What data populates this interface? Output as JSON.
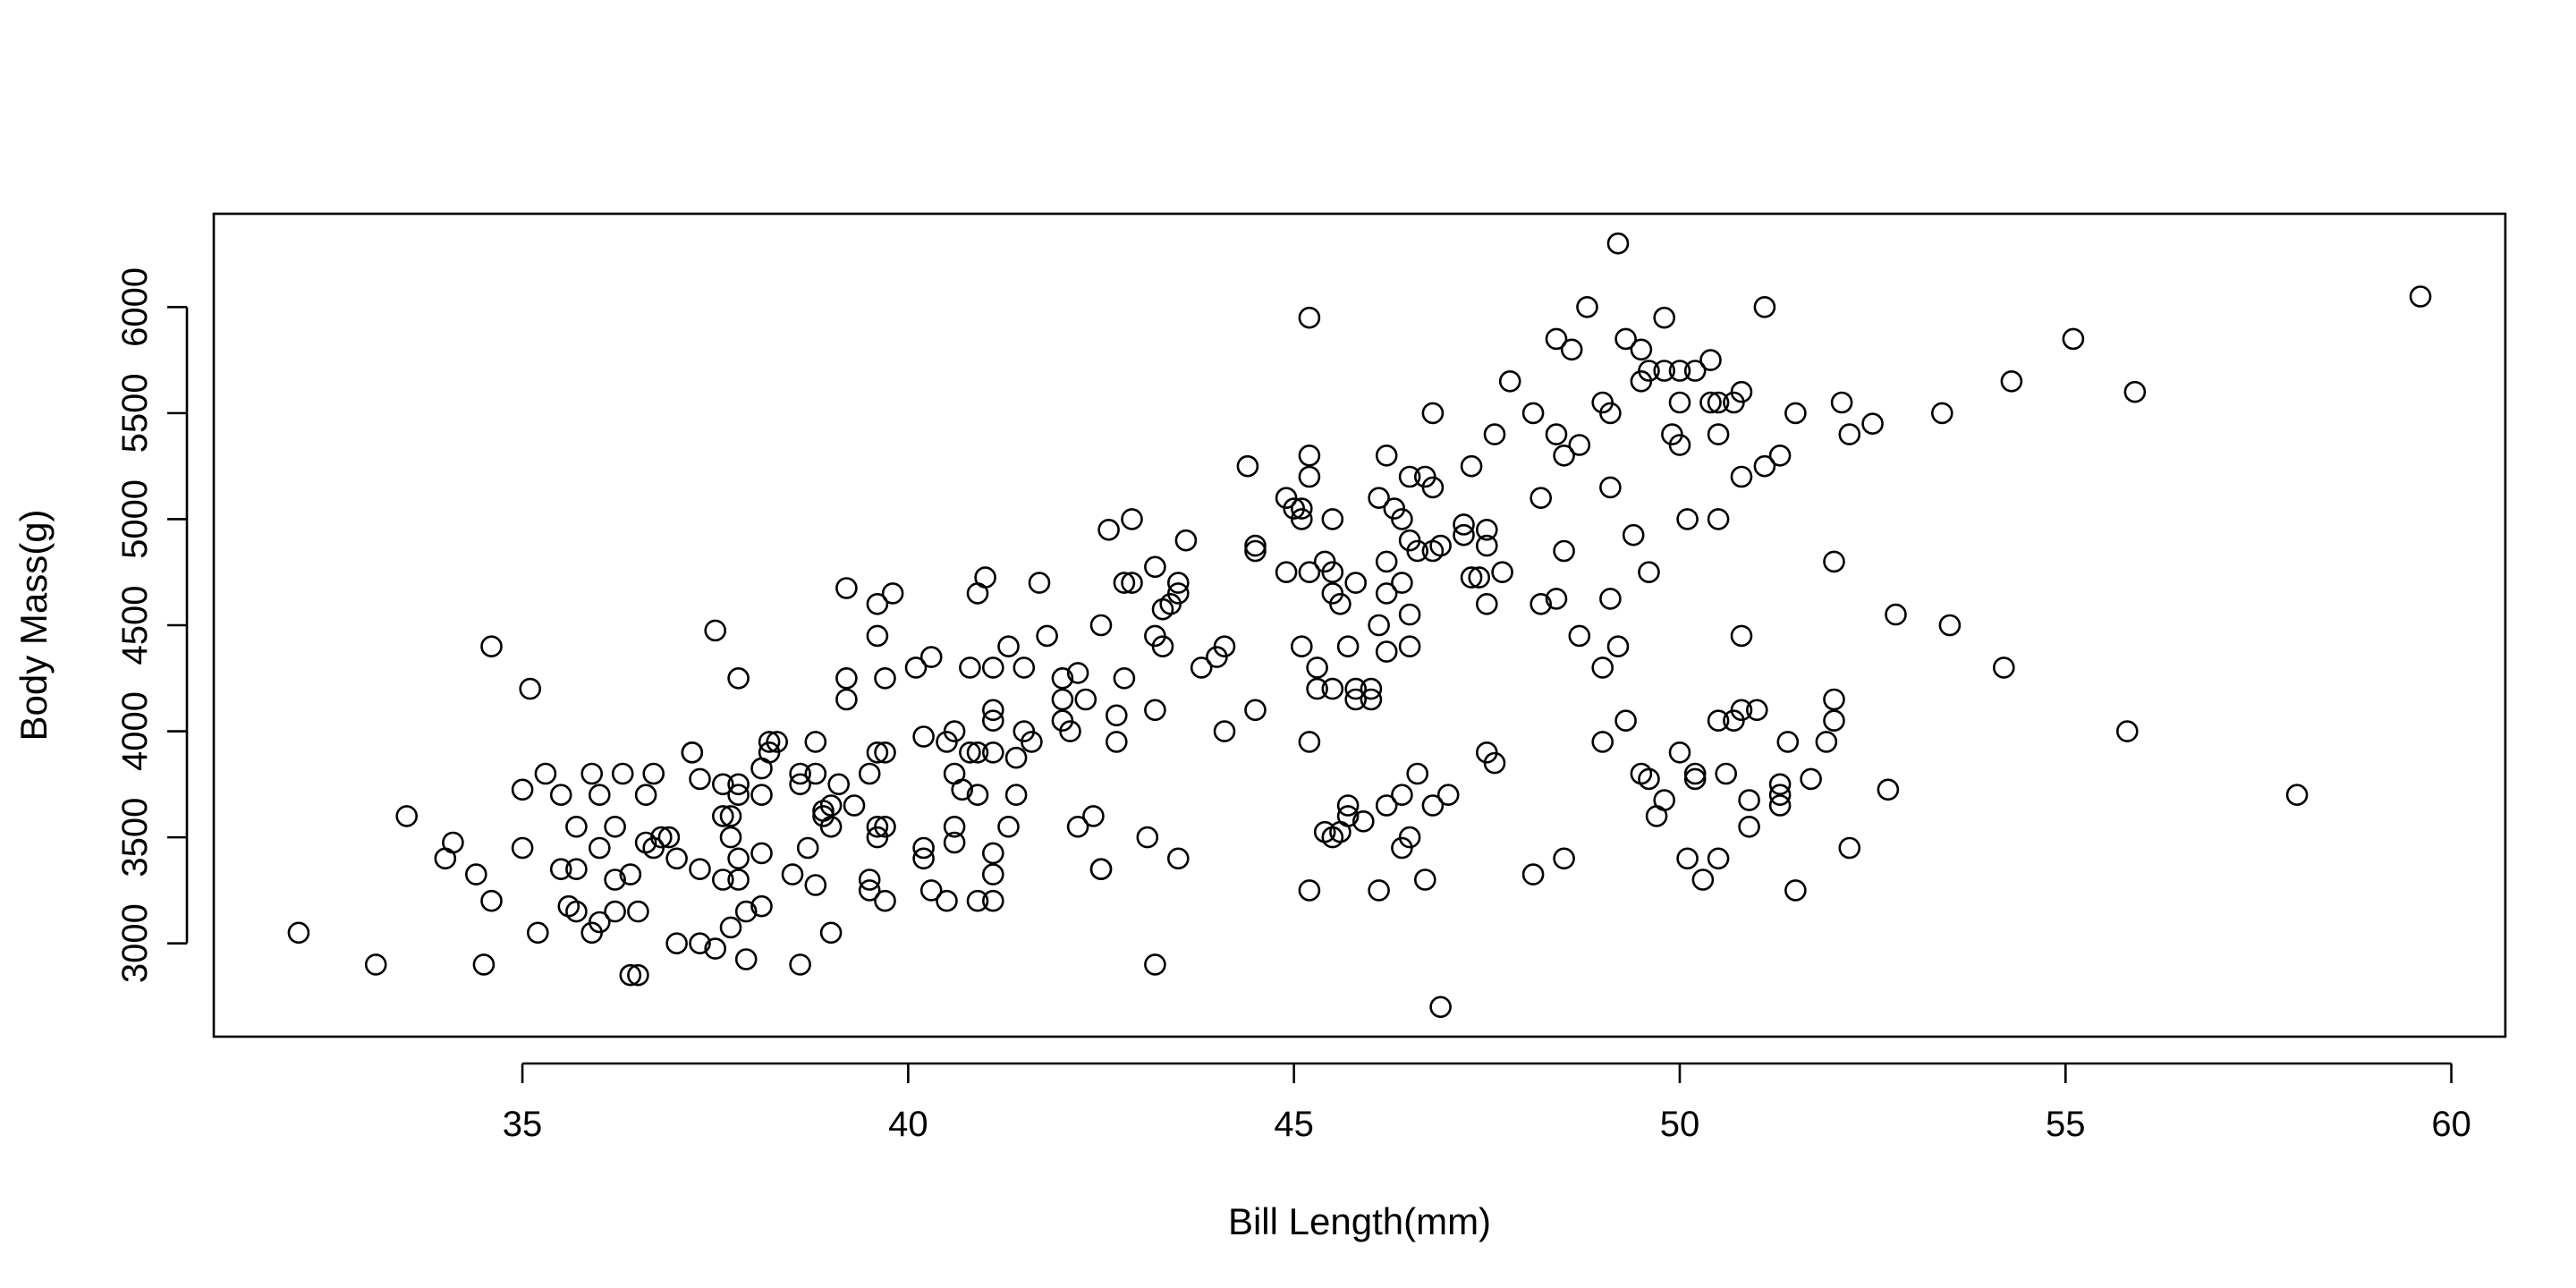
{
  "chart_data": {
    "type": "scatter",
    "title": "",
    "xlabel": "Bill Length(mm)",
    "ylabel": "Body Mass(g)",
    "xlim": [
      31,
      60.7
    ],
    "ylim": [
      2560,
      6440
    ],
    "xticks": [
      35,
      40,
      45,
      50,
      55,
      60
    ],
    "yticks": [
      3000,
      3500,
      4000,
      4500,
      5000,
      5500,
      6000
    ],
    "grid": false,
    "legend": "none",
    "marker": "open-circle",
    "color": "#000000",
    "points": [
      [
        32.1,
        3050
      ],
      [
        33.1,
        2900
      ],
      [
        33.5,
        3600
      ],
      [
        34.0,
        3400
      ],
      [
        34.1,
        3475
      ],
      [
        34.4,
        3325
      ],
      [
        34.5,
        2900
      ],
      [
        34.6,
        3200
      ],
      [
        34.6,
        4400
      ],
      [
        35.0,
        3450
      ],
      [
        35.0,
        3725
      ],
      [
        35.1,
        4200
      ],
      [
        35.2,
        3050
      ],
      [
        35.3,
        3800
      ],
      [
        35.5,
        3700
      ],
      [
        35.5,
        3350
      ],
      [
        35.6,
        3175
      ],
      [
        35.7,
        3150
      ],
      [
        35.7,
        3350
      ],
      [
        35.7,
        3550
      ],
      [
        35.9,
        3800
      ],
      [
        35.9,
        3050
      ],
      [
        36.0,
        3100
      ],
      [
        36.0,
        3450
      ],
      [
        36.0,
        3700
      ],
      [
        36.2,
        3300
      ],
      [
        36.2,
        3550
      ],
      [
        36.2,
        3150
      ],
      [
        36.3,
        3800
      ],
      [
        36.4,
        2850
      ],
      [
        36.4,
        3325
      ],
      [
        36.5,
        2850
      ],
      [
        36.5,
        3150
      ],
      [
        36.6,
        3475
      ],
      [
        36.6,
        3700
      ],
      [
        36.7,
        3450
      ],
      [
        36.7,
        3800
      ],
      [
        36.8,
        3500
      ],
      [
        36.9,
        3500
      ],
      [
        37.0,
        3400
      ],
      [
        37.0,
        3000
      ],
      [
        37.2,
        3900
      ],
      [
        37.2,
        3900
      ],
      [
        37.3,
        3775
      ],
      [
        37.3,
        3350
      ],
      [
        37.3,
        3000
      ],
      [
        37.5,
        4475
      ],
      [
        37.5,
        2975
      ],
      [
        37.6,
        3300
      ],
      [
        37.6,
        3600
      ],
      [
        37.6,
        3750
      ],
      [
        37.7,
        3600
      ],
      [
        37.7,
        3075
      ],
      [
        37.7,
        3500
      ],
      [
        37.8,
        3700
      ],
      [
        37.8,
        3750
      ],
      [
        37.8,
        3400
      ],
      [
        37.8,
        3300
      ],
      [
        37.8,
        4250
      ],
      [
        37.9,
        3150
      ],
      [
        37.9,
        2925
      ],
      [
        38.1,
        3425
      ],
      [
        38.1,
        3700
      ],
      [
        38.1,
        3825
      ],
      [
        38.1,
        3175
      ],
      [
        38.2,
        3950
      ],
      [
        38.2,
        3900
      ],
      [
        38.3,
        3950
      ],
      [
        38.6,
        3800
      ],
      [
        38.6,
        3750
      ],
      [
        38.6,
        2900
      ],
      [
        38.7,
        3450
      ],
      [
        38.5,
        3325
      ],
      [
        38.8,
        3950
      ],
      [
        38.8,
        3800
      ],
      [
        38.8,
        3275
      ],
      [
        38.9,
        3625
      ],
      [
        38.9,
        3600
      ],
      [
        39.0,
        3650
      ],
      [
        39.0,
        3550
      ],
      [
        39.0,
        3050
      ],
      [
        39.1,
        3750
      ],
      [
        39.2,
        4675
      ],
      [
        39.2,
        4250
      ],
      [
        39.2,
        4150
      ],
      [
        39.3,
        3650
      ],
      [
        39.5,
        3800
      ],
      [
        39.5,
        3300
      ],
      [
        39.5,
        3250
      ],
      [
        39.6,
        3500
      ],
      [
        39.6,
        3550
      ],
      [
        39.6,
        4450
      ],
      [
        39.6,
        4600
      ],
      [
        39.6,
        3900
      ],
      [
        39.7,
        3900
      ],
      [
        39.7,
        3200
      ],
      [
        39.7,
        3550
      ],
      [
        39.7,
        4250
      ],
      [
        39.8,
        4650
      ],
      [
        40.1,
        4300
      ],
      [
        40.2,
        3400
      ],
      [
        40.2,
        3450
      ],
      [
        40.2,
        3975
      ],
      [
        40.3,
        4350
      ],
      [
        40.3,
        3250
      ],
      [
        40.5,
        3950
      ],
      [
        40.5,
        3200
      ],
      [
        40.6,
        3800
      ],
      [
        40.6,
        3550
      ],
      [
        40.6,
        4000
      ],
      [
        40.6,
        3475
      ],
      [
        40.7,
        3725
      ],
      [
        40.8,
        4300
      ],
      [
        40.8,
        3900
      ],
      [
        40.9,
        3900
      ],
      [
        40.9,
        4650
      ],
      [
        40.9,
        3200
      ],
      [
        40.9,
        3700
      ],
      [
        41.0,
        4725
      ],
      [
        41.1,
        3425
      ],
      [
        41.1,
        3325
      ],
      [
        41.1,
        4050
      ],
      [
        41.1,
        4100
      ],
      [
        41.1,
        4300
      ],
      [
        41.1,
        3900
      ],
      [
        41.1,
        3200
      ],
      [
        41.3,
        3550
      ],
      [
        41.3,
        4400
      ],
      [
        41.4,
        3875
      ],
      [
        41.4,
        3700
      ],
      [
        41.5,
        4300
      ],
      [
        41.5,
        4000
      ],
      [
        41.6,
        3950
      ],
      [
        41.7,
        4700
      ],
      [
        41.8,
        4450
      ],
      [
        42.0,
        4150
      ],
      [
        42.0,
        4250
      ],
      [
        42.0,
        4050
      ],
      [
        42.1,
        4000
      ],
      [
        42.2,
        3550
      ],
      [
        42.2,
        4275
      ],
      [
        42.3,
        4150
      ],
      [
        42.4,
        3600
      ],
      [
        42.5,
        3350
      ],
      [
        42.5,
        4500
      ],
      [
        42.5,
        3350
      ],
      [
        42.6,
        4950
      ],
      [
        42.7,
        4075
      ],
      [
        42.7,
        3950
      ],
      [
        42.8,
        4700
      ],
      [
        42.8,
        4250
      ],
      [
        42.9,
        5000
      ],
      [
        42.9,
        4700
      ],
      [
        43.1,
        3500
      ],
      [
        43.2,
        4775
      ],
      [
        43.2,
        4100
      ],
      [
        43.2,
        4450
      ],
      [
        43.2,
        2900
      ],
      [
        43.3,
        4575
      ],
      [
        43.3,
        4400
      ],
      [
        43.4,
        4600
      ],
      [
        43.5,
        4650
      ],
      [
        43.5,
        4700
      ],
      [
        43.5,
        3400
      ],
      [
        43.6,
        4900
      ],
      [
        43.8,
        4300
      ],
      [
        44.0,
        4350
      ],
      [
        44.1,
        4400
      ],
      [
        44.1,
        4000
      ],
      [
        44.4,
        5250
      ],
      [
        44.5,
        4850
      ],
      [
        44.5,
        4875
      ],
      [
        44.5,
        4100
      ],
      [
        44.9,
        5100
      ],
      [
        44.9,
        4750
      ],
      [
        45.0,
        5050
      ],
      [
        45.1,
        5050
      ],
      [
        45.1,
        5000
      ],
      [
        45.1,
        4400
      ],
      [
        45.2,
        5950
      ],
      [
        45.2,
        5300
      ],
      [
        45.2,
        5200
      ],
      [
        45.2,
        4750
      ],
      [
        45.2,
        3950
      ],
      [
        45.2,
        3250
      ],
      [
        45.3,
        4300
      ],
      [
        45.3,
        4200
      ],
      [
        45.4,
        4800
      ],
      [
        45.4,
        3525
      ],
      [
        45.5,
        4750
      ],
      [
        45.5,
        4650
      ],
      [
        45.5,
        5000
      ],
      [
        45.5,
        4200
      ],
      [
        45.5,
        3500
      ],
      [
        45.6,
        4600
      ],
      [
        45.6,
        3525
      ],
      [
        45.7,
        4400
      ],
      [
        45.7,
        3650
      ],
      [
        45.7,
        3600
      ],
      [
        45.8,
        4200
      ],
      [
        45.8,
        4700
      ],
      [
        45.8,
        4150
      ],
      [
        45.9,
        3575
      ],
      [
        46.0,
        4200
      ],
      [
        46.0,
        4150
      ],
      [
        46.1,
        5100
      ],
      [
        46.1,
        4500
      ],
      [
        46.1,
        3250
      ],
      [
        46.2,
        5300
      ],
      [
        46.2,
        4650
      ],
      [
        46.2,
        4375
      ],
      [
        46.2,
        4800
      ],
      [
        46.2,
        3650
      ],
      [
        46.3,
        5050
      ],
      [
        46.4,
        5000
      ],
      [
        46.4,
        4700
      ],
      [
        46.4,
        3450
      ],
      [
        46.4,
        3700
      ],
      [
        46.5,
        5200
      ],
      [
        46.5,
        4550
      ],
      [
        46.5,
        4400
      ],
      [
        46.5,
        4900
      ],
      [
        46.5,
        3500
      ],
      [
        46.6,
        4850
      ],
      [
        46.6,
        3800
      ],
      [
        46.7,
        5200
      ],
      [
        46.7,
        3300
      ],
      [
        46.8,
        4850
      ],
      [
        46.8,
        5150
      ],
      [
        46.8,
        5500
      ],
      [
        46.8,
        3650
      ],
      [
        46.9,
        2700
      ],
      [
        46.9,
        4875
      ],
      [
        47.0,
        3700
      ],
      [
        47.2,
        4925
      ],
      [
        47.2,
        4975
      ],
      [
        47.3,
        5250
      ],
      [
        47.3,
        4725
      ],
      [
        47.4,
        4725
      ],
      [
        47.5,
        3900
      ],
      [
        47.5,
        4950
      ],
      [
        47.5,
        4875
      ],
      [
        47.5,
        4600
      ],
      [
        47.6,
        5400
      ],
      [
        47.6,
        3850
      ],
      [
        47.7,
        4750
      ],
      [
        47.8,
        5650
      ],
      [
        48.1,
        3325
      ],
      [
        48.1,
        5500
      ],
      [
        48.2,
        5100
      ],
      [
        48.2,
        4600
      ],
      [
        48.4,
        4625
      ],
      [
        48.4,
        5400
      ],
      [
        48.4,
        5850
      ],
      [
        48.5,
        5300
      ],
      [
        48.5,
        4850
      ],
      [
        48.5,
        3400
      ],
      [
        48.6,
        5800
      ],
      [
        48.7,
        5350
      ],
      [
        48.7,
        4450
      ],
      [
        48.8,
        6000
      ],
      [
        49.0,
        3950
      ],
      [
        49.0,
        5550
      ],
      [
        49.0,
        4300
      ],
      [
        49.1,
        4625
      ],
      [
        49.1,
        5500
      ],
      [
        49.1,
        5150
      ],
      [
        49.2,
        6300
      ],
      [
        49.2,
        4400
      ],
      [
        49.3,
        4050
      ],
      [
        49.3,
        5850
      ],
      [
        49.4,
        4925
      ],
      [
        49.5,
        5650
      ],
      [
        49.5,
        5800
      ],
      [
        49.5,
        3800
      ],
      [
        49.6,
        3775
      ],
      [
        49.6,
        5700
      ],
      [
        49.6,
        4750
      ],
      [
        49.7,
        3600
      ],
      [
        49.8,
        5700
      ],
      [
        49.8,
        5950
      ],
      [
        49.8,
        3675
      ],
      [
        49.9,
        5400
      ],
      [
        50.0,
        5550
      ],
      [
        50.0,
        5700
      ],
      [
        50.0,
        5350
      ],
      [
        50.0,
        3900
      ],
      [
        50.1,
        5000
      ],
      [
        50.1,
        3400
      ],
      [
        50.2,
        5700
      ],
      [
        50.2,
        3800
      ],
      [
        50.2,
        3775
      ],
      [
        50.3,
        3300
      ],
      [
        50.4,
        5550
      ],
      [
        50.4,
        5750
      ],
      [
        50.5,
        5550
      ],
      [
        50.5,
        5400
      ],
      [
        50.5,
        5000
      ],
      [
        50.5,
        3400
      ],
      [
        50.5,
        4050
      ],
      [
        50.6,
        3800
      ],
      [
        50.7,
        5550
      ],
      [
        50.7,
        4050
      ],
      [
        50.8,
        5600
      ],
      [
        50.8,
        5200
      ],
      [
        50.8,
        4450
      ],
      [
        50.8,
        4100
      ],
      [
        50.9,
        3675
      ],
      [
        50.9,
        3550
      ],
      [
        51.0,
        4100
      ],
      [
        51.1,
        5250
      ],
      [
        51.1,
        6000
      ],
      [
        51.3,
        5300
      ],
      [
        51.3,
        3750
      ],
      [
        51.3,
        3650
      ],
      [
        51.3,
        3700
      ],
      [
        51.4,
        3950
      ],
      [
        51.5,
        5500
      ],
      [
        51.5,
        3250
      ],
      [
        51.7,
        3775
      ],
      [
        51.9,
        3950
      ],
      [
        52.0,
        4800
      ],
      [
        52.0,
        4050
      ],
      [
        52.0,
        4150
      ],
      [
        52.1,
        5550
      ],
      [
        52.2,
        5400
      ],
      [
        52.2,
        3450
      ],
      [
        52.5,
        5450
      ],
      [
        52.7,
        3725
      ],
      [
        52.8,
        4550
      ],
      [
        53.4,
        5500
      ],
      [
        53.5,
        4500
      ],
      [
        54.2,
        4300
      ],
      [
        54.3,
        5650
      ],
      [
        55.1,
        5850
      ],
      [
        55.8,
        4000
      ],
      [
        55.9,
        5600
      ],
      [
        58.0,
        3700
      ],
      [
        59.6,
        6050
      ]
    ]
  }
}
